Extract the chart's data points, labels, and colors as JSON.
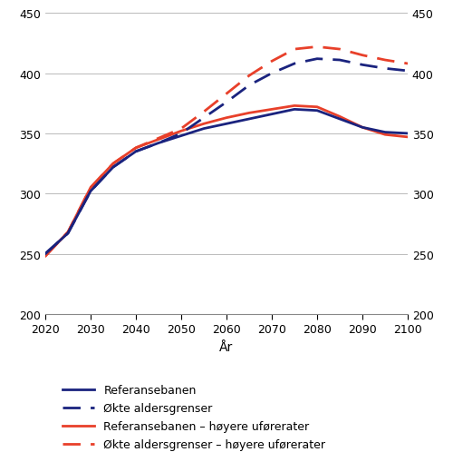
{
  "years": [
    2020,
    2025,
    2030,
    2035,
    2040,
    2045,
    2050,
    2055,
    2060,
    2065,
    2070,
    2075,
    2080,
    2085,
    2090,
    2095,
    2100
  ],
  "referansebanen": [
    250,
    267,
    302,
    322,
    335,
    342,
    348,
    354,
    358,
    362,
    366,
    370,
    369,
    362,
    355,
    351,
    350
  ],
  "okte_aldersgrenser": [
    250,
    267,
    302,
    322,
    335,
    342,
    350,
    363,
    376,
    390,
    400,
    408,
    412,
    411,
    407,
    404,
    402
  ],
  "referansebanen_hoyere": [
    248,
    268,
    305,
    325,
    338,
    345,
    352,
    358,
    363,
    367,
    370,
    373,
    372,
    364,
    355,
    349,
    347
  ],
  "okte_aldersgrenser_hoyere": [
    248,
    268,
    305,
    325,
    338,
    346,
    354,
    368,
    383,
    398,
    410,
    420,
    422,
    420,
    415,
    411,
    408
  ],
  "xlim": [
    2020,
    2100
  ],
  "ylim": [
    200,
    450
  ],
  "yticks": [
    200,
    250,
    300,
    350,
    400,
    450
  ],
  "xticks": [
    2020,
    2030,
    2040,
    2050,
    2060,
    2070,
    2080,
    2090,
    2100
  ],
  "xlabel": "År",
  "color_dark_blue": "#1a237e",
  "color_red": "#e8402a",
  "legend_labels": [
    "Referansebanen",
    "Økte aldersgrenser",
    "Referansebanen – høyere uførerater",
    "Økte aldersgrenser – høyere uførerater"
  ],
  "figsize": [
    5.0,
    5.1
  ],
  "dpi": 100
}
